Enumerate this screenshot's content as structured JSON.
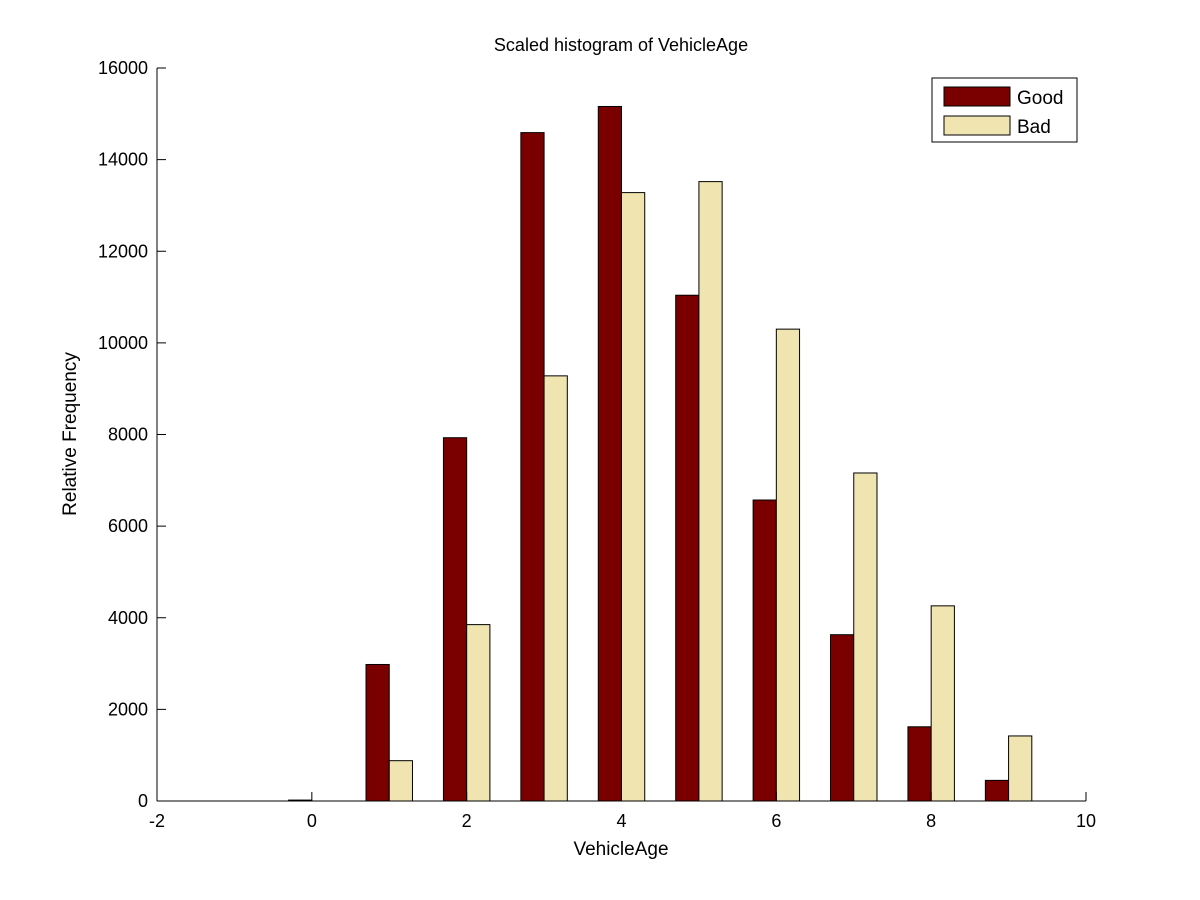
{
  "chart_data": {
    "type": "bar",
    "title": "Scaled histogram of VehicleAge",
    "xlabel": "VehicleAge",
    "ylabel": "Relative Frequency",
    "xlim": [
      -2,
      10
    ],
    "ylim": [
      0,
      16000
    ],
    "x_ticks": [
      "-2",
      "0",
      "2",
      "4",
      "6",
      "8",
      "10"
    ],
    "y_ticks": [
      "0",
      "2000",
      "4000",
      "6000",
      "8000",
      "10000",
      "12000",
      "14000",
      "16000"
    ],
    "x": [
      0,
      1,
      2,
      3,
      4,
      5,
      6,
      7,
      8,
      9
    ],
    "series": [
      {
        "name": "Good",
        "color": "#7a0000",
        "values": [
          20,
          2980,
          7930,
          14590,
          15160,
          11040,
          6570,
          3630,
          1620,
          450
        ]
      },
      {
        "name": "Bad",
        "color": "#f0e5b0",
        "values": [
          0,
          880,
          3850,
          9280,
          13280,
          13520,
          10300,
          7160,
          4260,
          1420
        ]
      }
    ],
    "grid": false,
    "legend_position": "top-right"
  }
}
